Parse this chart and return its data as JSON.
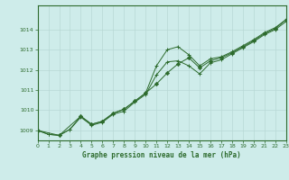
{
  "title": "Graphe pression niveau de la mer (hPa)",
  "background_color": "#ceecea",
  "grid_color": "#b8d8d5",
  "line_color": "#2d6b2d",
  "xlim": [
    0,
    23
  ],
  "ylim": [
    1008.5,
    1015.2
  ],
  "yticks": [
    1009,
    1010,
    1011,
    1012,
    1013,
    1014
  ],
  "xticks": [
    0,
    1,
    2,
    3,
    4,
    5,
    6,
    7,
    8,
    9,
    10,
    11,
    12,
    13,
    14,
    15,
    16,
    17,
    18,
    19,
    20,
    21,
    22,
    23
  ],
  "s1_x": [
    0,
    1,
    2,
    3,
    4,
    5,
    6,
    7,
    8,
    9,
    10,
    11,
    12,
    13,
    14,
    15,
    16,
    17,
    18,
    19,
    20,
    21,
    22,
    23
  ],
  "s1_y": [
    1009.0,
    1008.8,
    1008.75,
    1009.05,
    1009.7,
    1009.3,
    1009.45,
    1009.85,
    1010.05,
    1010.45,
    1010.85,
    1012.2,
    1013.0,
    1013.15,
    1012.75,
    1012.2,
    1012.55,
    1012.65,
    1012.9,
    1013.2,
    1013.5,
    1013.85,
    1014.1,
    1014.5
  ],
  "s2_x": [
    0,
    2,
    4,
    5,
    6,
    7,
    8,
    9,
    10,
    11,
    12,
    13,
    14,
    15,
    16,
    17,
    18,
    19,
    20,
    21,
    22,
    23
  ],
  "s2_y": [
    1009.0,
    1008.75,
    1009.7,
    1009.3,
    1009.45,
    1009.85,
    1010.05,
    1010.45,
    1010.85,
    1011.3,
    1011.85,
    1012.3,
    1012.6,
    1012.1,
    1012.45,
    1012.6,
    1012.85,
    1013.15,
    1013.45,
    1013.8,
    1014.05,
    1014.5
  ],
  "s3_x": [
    0,
    1,
    2,
    3,
    4,
    5,
    6,
    7,
    8,
    9,
    10,
    11,
    12,
    13,
    14,
    15,
    16,
    17,
    18,
    19,
    20,
    21,
    22,
    23
  ],
  "s3_y": [
    1009.0,
    1008.8,
    1008.75,
    1009.05,
    1009.65,
    1009.25,
    1009.4,
    1009.8,
    1009.95,
    1010.4,
    1010.78,
    1011.75,
    1012.4,
    1012.45,
    1012.2,
    1011.8,
    1012.35,
    1012.5,
    1012.8,
    1013.1,
    1013.4,
    1013.75,
    1014.0,
    1014.4
  ]
}
